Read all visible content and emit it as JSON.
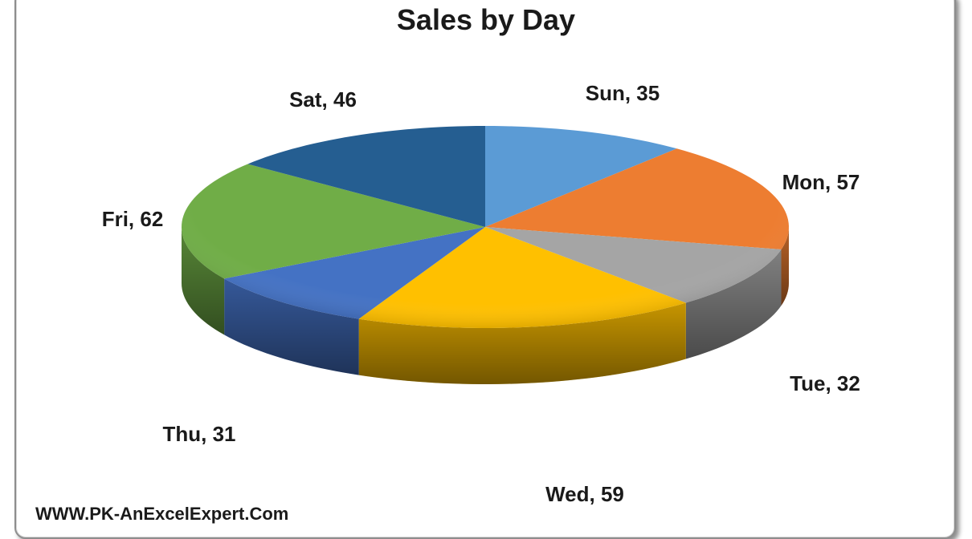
{
  "chart_data": {
    "type": "pie",
    "title": "Sales by Day",
    "categories": [
      "Sun",
      "Mon",
      "Tue",
      "Wed",
      "Thu",
      "Fri",
      "Sat"
    ],
    "values": [
      35,
      57,
      32,
      59,
      31,
      62,
      46
    ],
    "data_labels": [
      "Sun, 35",
      "Mon, 57",
      "Tue, 32",
      "Wed, 59",
      "Thu, 31",
      "Fri, 62",
      "Sat, 46"
    ],
    "colors": [
      "#5b9bd5",
      "#ed7d31",
      "#a5a5a5",
      "#ffc000",
      "#4472c4",
      "#70ad47",
      "#255e91"
    ],
    "style": "3D pie",
    "legend": "none"
  },
  "watermark": "WWW.PK-AnExcelExpert.Com"
}
